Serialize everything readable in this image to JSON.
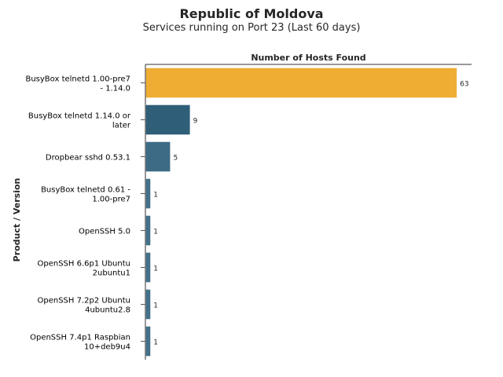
{
  "chart_data": {
    "type": "bar",
    "orientation": "horizontal",
    "title": "Republic of Moldova",
    "subtitle": "Services running on Port 23 (Last 60 days)",
    "xlabel": "Number of Hosts Found",
    "ylabel": "Product / Version",
    "xlabel_position": "top",
    "xlim": [
      0,
      66
    ],
    "grid": false,
    "categories": [
      [
        "BusyBox telnetd 1.00-pre7",
        "- 1.14.0"
      ],
      [
        "BusyBox telnetd 1.14.0 or",
        "later"
      ],
      [
        "Dropbear sshd 0.53.1"
      ],
      [
        "BusyBox telnetd 0.61 -",
        "1.00-pre7"
      ],
      [
        "OpenSSH 5.0"
      ],
      [
        "OpenSSH 6.6p1 Ubuntu",
        "2ubuntu1"
      ],
      [
        "OpenSSH 7.2p2 Ubuntu",
        "4ubuntu2.8"
      ],
      [
        "OpenSSH 7.4p1 Raspbian",
        "10+deb9u4"
      ]
    ],
    "values": [
      63,
      9,
      5,
      1,
      1,
      1,
      1,
      1
    ],
    "colors": [
      "#efad33",
      "#2f5e78",
      "#3d6b85",
      "#44718a",
      "#44718a",
      "#44718a",
      "#44718a",
      "#44718a"
    ]
  }
}
